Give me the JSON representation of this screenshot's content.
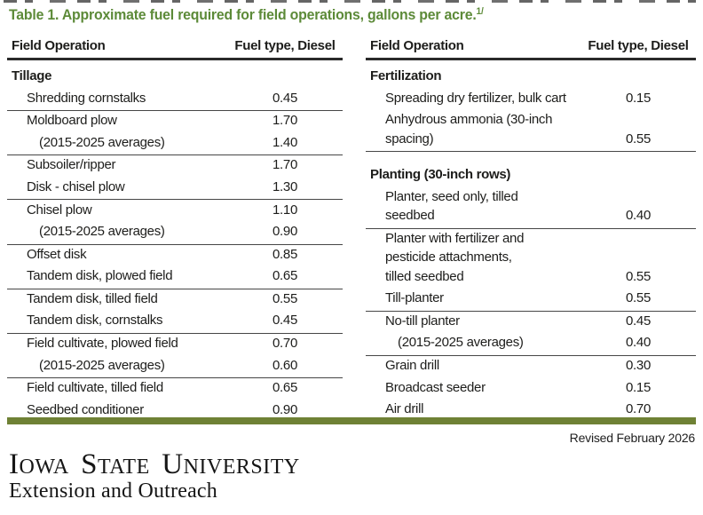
{
  "page": {
    "title": "Table 1. Approximate fuel required for field operations, gallons per acre.",
    "title_superscript": "1/",
    "revised_note": "Revised February 2026"
  },
  "columns": {
    "operation": "Field Operation",
    "fuel": "Fuel type, Diesel"
  },
  "left": {
    "rows": [
      {
        "label": "Tillage"
      },
      {
        "label": "Shredding cornstalks",
        "value": "0.45"
      },
      {
        "label": "Moldboard plow",
        "value": "1.70"
      },
      {
        "label": "(2015-2025 averages)",
        "value": "1.40"
      },
      {
        "label": "Subsoiler/ripper",
        "value": "1.70"
      },
      {
        "label": "Disk - chisel plow",
        "value": "1.30"
      },
      {
        "label": "Chisel plow",
        "value": "1.10"
      },
      {
        "label": "(2015-2025 averages)",
        "value": "0.90"
      },
      {
        "label": "Offset disk",
        "value": "0.85"
      },
      {
        "label": "Tandem disk, plowed field",
        "value": "0.65"
      },
      {
        "label": "Tandem disk, tilled field",
        "value": "0.55"
      },
      {
        "label": "Tandem disk, cornstalks",
        "value": "0.45"
      },
      {
        "label": "Field cultivate, plowed field",
        "value": "0.70"
      },
      {
        "label": "(2015-2025 averages)",
        "value": "0.60"
      },
      {
        "label": "Field cultivate, tilled field",
        "value": "0.65"
      },
      {
        "label": "Seedbed conditioner",
        "value": "0.90"
      }
    ]
  },
  "right": {
    "rows": [
      {
        "label": "Fertilization"
      },
      {
        "label": "Spreading dry fertilizer, bulk cart",
        "value": "0.15"
      },
      {
        "label": "Anhydrous ammonia (30-inch\nspacing)",
        "value": "0.55"
      },
      {
        "label": "Planting (30-inch rows)"
      },
      {
        "label": "Planter, seed only, tilled\nseedbed",
        "value": "0.40"
      },
      {
        "label": "Planter with fertilizer and\npesticide attachments,\ntilled seedbed",
        "value": "0.55"
      },
      {
        "label": "Till-planter",
        "value": "0.55"
      },
      {
        "label": "No-till planter",
        "value": "0.45"
      },
      {
        "label": "(2015-2025 averages)",
        "value": "0.40"
      },
      {
        "label": "Grain drill",
        "value": "0.30"
      },
      {
        "label": "Broadcast seeder",
        "value": "0.15"
      },
      {
        "label": "Air drill",
        "value": "0.70"
      }
    ]
  },
  "footer": {
    "logo": {
      "words": [
        {
          "lead": "I",
          "rest": "OWA"
        },
        {
          "lead": "S",
          "rest": "TATE"
        },
        {
          "lead": "U",
          "rest": "NIVERSITY"
        }
      ],
      "tagline": "Extension and Outreach"
    }
  },
  "colors": {
    "title_green": "#5c8a38",
    "bar_green": "#6f8135",
    "text": "#1d1d1b"
  }
}
